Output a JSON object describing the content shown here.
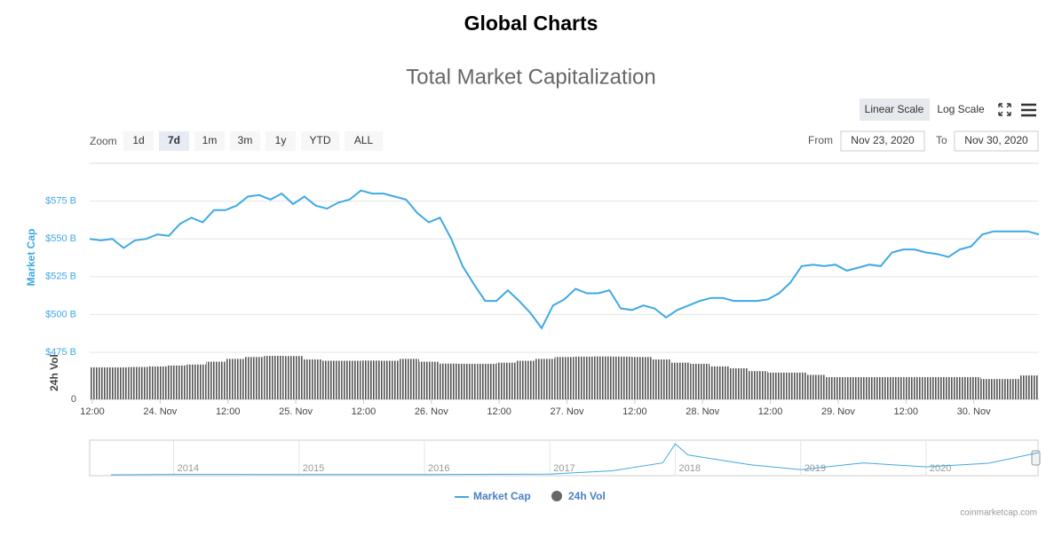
{
  "header": {
    "title": "Global Charts",
    "source": "coinmarketcap.com"
  },
  "controls": {
    "scales": [
      "Linear Scale",
      "Log Scale"
    ],
    "zoom_label": "Zoom",
    "zoom": [
      "1d",
      "7d",
      "1m",
      "3m",
      "1y",
      "YTD",
      "ALL"
    ],
    "from_label": "From",
    "from": "Nov 23, 2020",
    "to_label": "To",
    "to": "Nov 30, 2020"
  },
  "chart_data": [
    {
      "type": "line",
      "title": "Total Market Capitalization",
      "ylabel": "Market Cap",
      "xtick_labels": [
        "12:00",
        "24. Nov",
        "12:00",
        "25. Nov",
        "12:00",
        "26. Nov",
        "12:00",
        "27. Nov",
        "12:00",
        "28. Nov",
        "12:00",
        "29. Nov",
        "12:00",
        "30. Nov"
      ],
      "series": [
        {
          "name": "Market Cap",
          "color": "#3fa9e5",
          "values": [
            550,
            549,
            550,
            544,
            549,
            550,
            553,
            552,
            560,
            564,
            561,
            569,
            569,
            572,
            578,
            579,
            576,
            580,
            573,
            578,
            572,
            570,
            574,
            576,
            582,
            580,
            580,
            578,
            576,
            567,
            561,
            564,
            550,
            532,
            520,
            509,
            509,
            516,
            509,
            501,
            491,
            506,
            510,
            517,
            514,
            514,
            516,
            504,
            503,
            506,
            504,
            498,
            503,
            506,
            509,
            511,
            511,
            509,
            509,
            509,
            510,
            514,
            521,
            532,
            533,
            532,
            533,
            529,
            531,
            533,
            532,
            541,
            543,
            543,
            541,
            540,
            538,
            543,
            545,
            553,
            555,
            555,
            555,
            555,
            553
          ]
        }
      ],
      "ylim": [
        475,
        600
      ],
      "yticks": [
        {
          "value": 475,
          "label": "$475 B"
        },
        {
          "value": 500,
          "label": "$500 B"
        },
        {
          "value": 525,
          "label": "$525 B"
        },
        {
          "value": 550,
          "label": "$550 B"
        },
        {
          "value": 575,
          "label": "$575 B"
        }
      ],
      "grid": true
    },
    {
      "type": "bar",
      "ylabel": "24h Vol",
      "series": [
        {
          "name": "24h Vol",
          "color": "#555555",
          "values": [
            170,
            170,
            172,
            175,
            180,
            185,
            200,
            215,
            225,
            231,
            230,
            212,
            205,
            205,
            206,
            205,
            215,
            200,
            190,
            189,
            189,
            195,
            205,
            215,
            225,
            227,
            228,
            227,
            225,
            212,
            195,
            189,
            175,
            165,
            150,
            142,
            142,
            130,
            118,
            118,
            118,
            118,
            118,
            118,
            118,
            118,
            108,
            108,
            127
          ]
        }
      ],
      "ylim": [
        0,
        250
      ],
      "yticks": [
        0
      ]
    },
    {
      "type": "line",
      "series": [
        {
          "color": "#3fa9e5",
          "values": [
            1,
            10,
            8,
            5,
            4,
            7,
            12,
            18,
            100,
            300,
            780,
            500,
            400,
            250,
            130,
            300,
            200,
            290,
            560
          ]
        }
      ],
      "x": [
        2013.5,
        2014,
        2014.5,
        2015,
        2015.5,
        2016,
        2016.5,
        2017,
        2017.5,
        2017.9,
        2018.0,
        2018.1,
        2018.3,
        2018.6,
        2019,
        2019.5,
        2020,
        2020.5,
        2020.9
      ],
      "xlim": [
        2013.33,
        2020.9
      ],
      "ylim": [
        0,
        850
      ],
      "xticks": [
        2014,
        2015,
        2016,
        2017,
        2018,
        2019,
        2020
      ]
    }
  ]
}
